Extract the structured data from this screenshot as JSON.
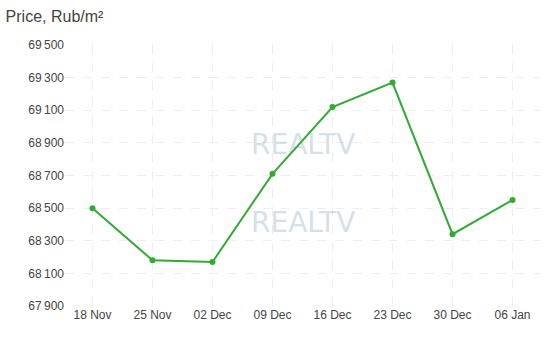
{
  "chart_data": {
    "type": "line",
    "title": "Price, Rub/m²",
    "categories": [
      "18 Nov",
      "25 Nov",
      "02 Dec",
      "09 Dec",
      "16 Dec",
      "23 Dec",
      "30 Dec",
      "06 Jan"
    ],
    "values": [
      68500,
      68180,
      68170,
      68710,
      69120,
      69270,
      68340,
      68550
    ],
    "color": "#33aa33",
    "marker": "circle",
    "ylim": [
      67900,
      69500
    ],
    "yticks": [
      {
        "value": 67900,
        "label": "67 900"
      },
      {
        "value": 68100,
        "label": "68 100"
      },
      {
        "value": 68300,
        "label": "68 300"
      },
      {
        "value": 68500,
        "label": "68 500"
      },
      {
        "value": 68700,
        "label": "68 700"
      },
      {
        "value": 68900,
        "label": "68 900"
      },
      {
        "value": 69100,
        "label": "69 100"
      },
      {
        "value": 69300,
        "label": "69 300"
      },
      {
        "value": 69500,
        "label": "69 500"
      }
    ],
    "grid": true,
    "annotations": [
      "REALTV",
      "REALTV"
    ]
  }
}
